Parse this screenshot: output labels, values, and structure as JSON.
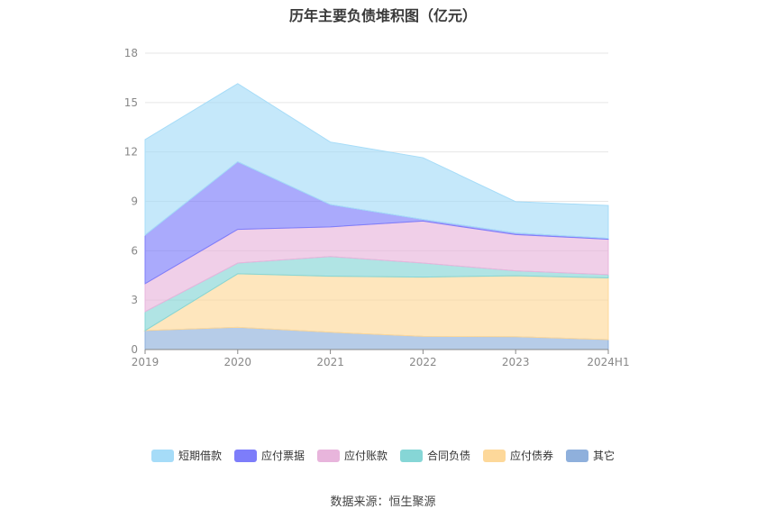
{
  "chart_data": {
    "type": "area",
    "stacked": true,
    "title": "历年主要负债堆积图（亿元）",
    "categories": [
      "2019",
      "2020",
      "2021",
      "2022",
      "2023",
      "2024H1"
    ],
    "ylim": [
      0,
      18
    ],
    "yticks": [
      0,
      3,
      6,
      9,
      12,
      15,
      18
    ],
    "grid": true,
    "legend_position": "bottom",
    "series": [
      {
        "name": "其它",
        "color": "#8fb0dc",
        "values": [
          1.15,
          1.35,
          1.05,
          0.8,
          0.78,
          0.6
        ]
      },
      {
        "name": "应付债券",
        "color": "#fdd89a",
        "values": [
          0.0,
          3.25,
          3.4,
          3.6,
          3.7,
          3.75
        ]
      },
      {
        "name": "合同负债",
        "color": "#86d6d6",
        "values": [
          1.15,
          0.65,
          1.2,
          0.85,
          0.3,
          0.2
        ]
      },
      {
        "name": "应付账款",
        "color": "#e8b5dc",
        "values": [
          1.7,
          2.05,
          1.8,
          2.55,
          2.2,
          2.15
        ]
      },
      {
        "name": "应付票据",
        "color": "#7d7dfa",
        "values": [
          2.95,
          4.1,
          1.35,
          0.1,
          0.1,
          0.05
        ]
      },
      {
        "name": "短期借款",
        "color": "#a6dcf8",
        "values": [
          5.8,
          4.75,
          3.8,
          3.75,
          1.9,
          2.0
        ]
      }
    ],
    "legend_order": [
      "短期借款",
      "应付票据",
      "应付账款",
      "合同负债",
      "应付债券",
      "其它"
    ]
  },
  "source": "数据来源：恒生聚源"
}
